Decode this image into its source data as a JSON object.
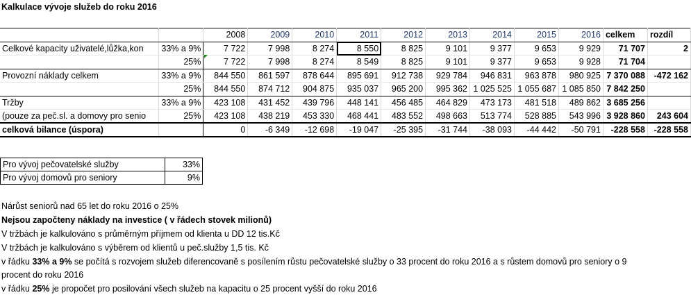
{
  "title": "Kalkulace vývoje služeb do roku 2016",
  "header": {
    "years": [
      "2008",
      "2009",
      "2010",
      "2011",
      "2012",
      "2013",
      "2014",
      "2015",
      "2016"
    ],
    "total": "celkem",
    "diff": "rozdíl"
  },
  "rows": {
    "cap1": {
      "label": "Celkové kapacity uživatelé,lůžka,kon",
      "pct": "33% a 9%",
      "values": [
        "7 722",
        "7 998",
        "8 274",
        "8 550",
        "8 825",
        "9 101",
        "9 377",
        "9 653",
        "9 929"
      ],
      "total": "71 707",
      "diff": "2"
    },
    "cap2": {
      "label": "",
      "pct": "25%",
      "values": [
        "7 722",
        "7 998",
        "8 274",
        "8 549",
        "8 825",
        "9 101",
        "9 377",
        "9 653",
        "9 928"
      ],
      "total": "71 704",
      "diff": ""
    },
    "cost1": {
      "label": "Provozní náklady celkem",
      "pct": "33% a 9%",
      "values": [
        "844 550",
        "861 597",
        "878 644",
        "895 691",
        "912 738",
        "929 784",
        "946 831",
        "963 878",
        "980 925"
      ],
      "total": "7 370 088",
      "diff": "-472 162"
    },
    "cost2": {
      "label": "",
      "pct": "25%",
      "values": [
        "844 550",
        "874 712",
        "904 875",
        "935 037",
        "965 200",
        "995 362",
        "1 025 525",
        "1 055 687",
        "1 085 850"
      ],
      "total": "7 842 250",
      "diff": ""
    },
    "rev1": {
      "label": "Tržby",
      "pct": "33% a 9%",
      "values": [
        "423 108",
        "431 452",
        "439 796",
        "448 141",
        "456 485",
        "464 829",
        "473 173",
        "481 518",
        "489 862"
      ],
      "total": "3 685 256",
      "diff": ""
    },
    "rev2": {
      "label": "(pouze za peč.sl. a domovy pro senio",
      "pct": "25%",
      "values": [
        "423 108",
        "438 219",
        "453 330",
        "468 441",
        "483 552",
        "498 663",
        "513 774",
        "528 885",
        "543 996"
      ],
      "total": "3 928 860",
      "diff": "243 604"
    },
    "bal": {
      "label": "celková bilance (úspora)",
      "pct": "",
      "values": [
        "0",
        "-6 349",
        "-12 698",
        "-19 047",
        "-25 395",
        "-31 744",
        "-38 093",
        "-44 442",
        "-50 791"
      ],
      "total": "-228 558",
      "diff": "-228 558"
    }
  },
  "growth": [
    {
      "label": "Pro vývoj pečovatelské služby",
      "value": "33%"
    },
    {
      "label": "Pro vývoj domovů pro seniory",
      "value": "9%"
    }
  ],
  "notes": {
    "n1": "Nárůst seniorů nad 65 let do roku 2016 o 25%",
    "n2": "Nejsou započteny náklady na investice ( v řádech stovek milionů)",
    "n3": "V tržbách je kalkulováno s průměrným příjmem od klienta u DD 12 tis.Kč",
    "n4": "V tržbách je kalkulováno s výběrem od klientů u peč.služby 1,5 tis. Kč",
    "n5_a": "v řádku ",
    "n5_b": "33% a 9%",
    "n5_c": " se počítá s rozvojem služeb diferencovaně s posílením růstu pečovatelské služby o 33 procent do roku 2016 a s růstem domovů pro seniory  o 9",
    "n5_d": "procent do roku 2016",
    "n6_a": "v řádku ",
    "n6_b": "25%",
    "n6_c": " je propočet pro posilování všech služeb na kapacitu o 25 procent vyšší do roku 2016"
  }
}
